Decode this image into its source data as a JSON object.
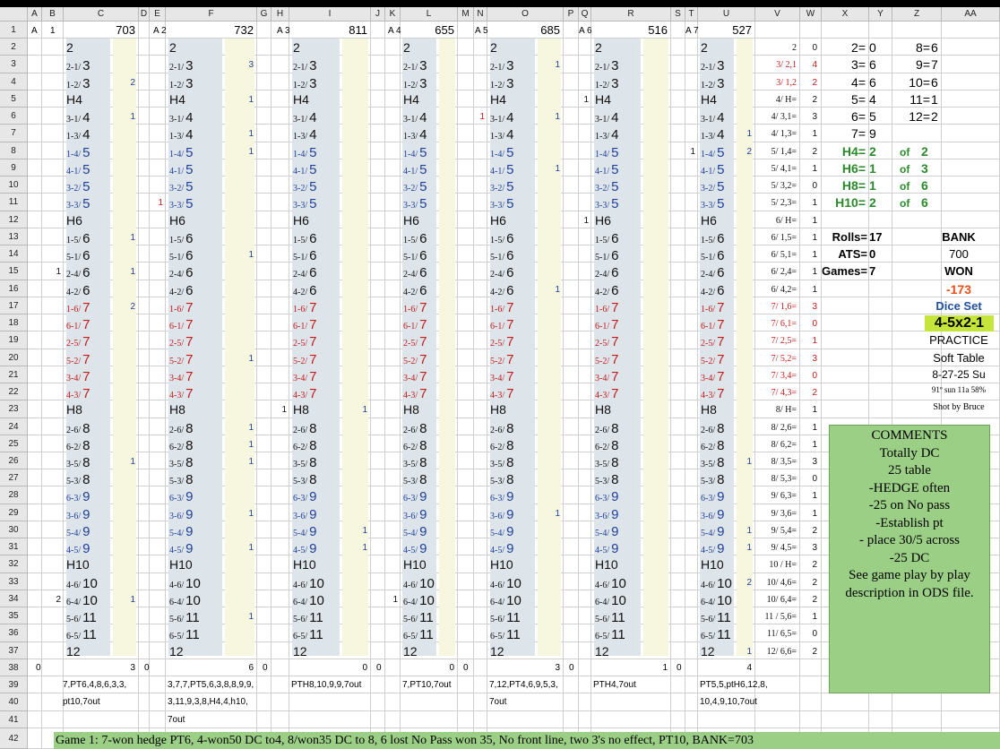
{
  "column_headers": [
    "A",
    "B",
    "C",
    "D",
    "E",
    "F",
    "G",
    "H",
    "I",
    "J",
    "K",
    "L",
    "M",
    "N",
    "O",
    "P",
    "Q",
    "R",
    "S",
    "T",
    "U",
    "V",
    "W",
    "X",
    "Y",
    "Z",
    "AA"
  ],
  "row_numbers": [
    "1",
    "2",
    "3",
    "4",
    "5",
    "6",
    "7",
    "8",
    "9",
    "10",
    "11",
    "12",
    "13",
    "14",
    "15",
    "16",
    "17",
    "18",
    "19",
    "20",
    "21",
    "22",
    "23",
    "24",
    "25",
    "26",
    "27",
    "28",
    "29",
    "30",
    "31",
    "32",
    "33",
    "34",
    "35",
    "36",
    "37",
    "38",
    "39",
    "40",
    "41",
    "42"
  ],
  "rolls": [
    {
      "label": "2",
      "type": "h",
      "color": "k"
    },
    {
      "label": "2-1/",
      "big": "3",
      "color": "k"
    },
    {
      "label": "1-2/",
      "big": "3",
      "color": "k"
    },
    {
      "label": "H4",
      "type": "h",
      "color": "k"
    },
    {
      "label": "3-1/",
      "big": "4",
      "color": "k"
    },
    {
      "label": "1-3/",
      "big": "4",
      "color": "k"
    },
    {
      "label": "1-4/",
      "big": "5",
      "color": "b"
    },
    {
      "label": "4-1/",
      "big": "5",
      "color": "b"
    },
    {
      "label": "3-2/",
      "big": "5",
      "color": "b"
    },
    {
      "label": "3-3/",
      "big": "5",
      "color": "b"
    },
    {
      "label": "H6",
      "type": "h",
      "color": "k"
    },
    {
      "label": "1-5/",
      "big": "6",
      "color": "k"
    },
    {
      "label": "5-1/",
      "big": "6",
      "color": "k"
    },
    {
      "label": "2-4/",
      "big": "6",
      "color": "k"
    },
    {
      "label": "4-2/",
      "big": "6",
      "color": "k"
    },
    {
      "label": "1-6/",
      "big": "7",
      "color": "r"
    },
    {
      "label": "6-1/",
      "big": "7",
      "color": "r"
    },
    {
      "label": "2-5/",
      "big": "7",
      "color": "r"
    },
    {
      "label": "5-2/",
      "big": "7",
      "color": "r"
    },
    {
      "label": "3-4/",
      "big": "7",
      "color": "r"
    },
    {
      "label": "4-3/",
      "big": "7",
      "color": "r"
    },
    {
      "label": "H8",
      "type": "h",
      "color": "k"
    },
    {
      "label": "2-6/",
      "big": "8",
      "color": "k"
    },
    {
      "label": "6-2/",
      "big": "8",
      "color": "k"
    },
    {
      "label": "3-5/",
      "big": "8",
      "color": "k"
    },
    {
      "label": "5-3/",
      "big": "8",
      "color": "k"
    },
    {
      "label": "6-3/",
      "big": "9",
      "color": "b"
    },
    {
      "label": "3-6/",
      "big": "9",
      "color": "b"
    },
    {
      "label": "5-4/",
      "big": "9",
      "color": "b"
    },
    {
      "label": "4-5/",
      "big": "9",
      "color": "b"
    },
    {
      "label": "H10",
      "type": "h",
      "color": "k"
    },
    {
      "label": "4-6/",
      "big": "10",
      "color": "k"
    },
    {
      "label": "6-4/",
      "big": "10",
      "color": "k"
    },
    {
      "label": "5-6/",
      "big": "11",
      "color": "k"
    },
    {
      "label": "6-5/",
      "big": "11",
      "color": "k"
    },
    {
      "label": "12",
      "type": "h",
      "color": "k"
    }
  ],
  "games": [
    {
      "a": "A",
      "b": "1",
      "total": "703",
      "row38_left": "0",
      "row38_right": "3",
      "row38_d": "0",
      "notes": [
        "7,PT6,4,8,6,3,3,",
        "pt10,7out",
        ""
      ],
      "counts": [
        {
          "row": 4,
          "v": "2"
        },
        {
          "row": 6,
          "v": "1"
        },
        {
          "row": 13,
          "v": "1"
        },
        {
          "row": 15,
          "v": "1"
        },
        {
          "row": 17,
          "v": "2"
        },
        {
          "row": 26,
          "v": "1"
        },
        {
          "row": 34,
          "v": "1"
        }
      ],
      "left_counts": [
        {
          "row": 15,
          "v": "1"
        },
        {
          "row": 34,
          "v": "2"
        }
      ]
    },
    {
      "a": "A",
      "b": "2",
      "total": "732",
      "row38_left": "",
      "row38_right": "6",
      "row38_d": "0",
      "notes": [
        "3,7,7,PT5,6,3,8,8,9,9,",
        "3,11,9,3,8,H4,4,h10,",
        "7out"
      ],
      "counts": [
        {
          "row": 3,
          "v": "3"
        },
        {
          "row": 5,
          "v": "1"
        },
        {
          "row": 7,
          "v": "1"
        },
        {
          "row": 8,
          "v": "1"
        },
        {
          "row": 14,
          "v": "1"
        },
        {
          "row": 20,
          "v": "1"
        },
        {
          "row": 24,
          "v": "1"
        },
        {
          "row": 25,
          "v": "1"
        },
        {
          "row": 26,
          "v": "1"
        },
        {
          "row": 29,
          "v": "1"
        },
        {
          "row": 31,
          "v": "1"
        },
        {
          "row": 35,
          "v": "1"
        }
      ],
      "left_counts": [
        {
          "row": 11,
          "v": "1"
        }
      ]
    },
    {
      "a": "A",
      "b": "3",
      "total": "811",
      "row38_left": "",
      "row38_right": "0",
      "row38_d": "0",
      "notes": [
        "PTH8,10,9,9,7out",
        "",
        ""
      ],
      "counts": [
        {
          "row": 23,
          "v": "1"
        },
        {
          "row": 30,
          "v": "1"
        },
        {
          "row": 31,
          "v": "1"
        }
      ],
      "left_counts": [
        {
          "row": 23,
          "v": "1"
        }
      ]
    },
    {
      "a": "A",
      "b": "4",
      "total": "655",
      "row38_left": "",
      "row38_right": "0",
      "row38_d": "0",
      "notes": [
        "7,PT10,7out",
        "",
        ""
      ],
      "counts": [],
      "left_counts": [
        {
          "row": 34,
          "v": "1"
        }
      ]
    },
    {
      "a": "A",
      "b": "5",
      "total": "685",
      "row38_left": "",
      "row38_right": "3",
      "row38_d": "0",
      "notes": [
        "7,12,PT4,6,9,5,3,",
        "7out",
        ""
      ],
      "counts": [
        {
          "row": 3,
          "v": "1"
        },
        {
          "row": 6,
          "v": "1"
        },
        {
          "row": 9,
          "v": "1"
        },
        {
          "row": 16,
          "v": "1"
        },
        {
          "row": 29,
          "v": "1"
        }
      ],
      "left_counts": [
        {
          "row": 6,
          "v": "1"
        }
      ]
    },
    {
      "a": "A",
      "b": "6",
      "total": "516",
      "row38_left": "",
      "row38_right": "1",
      "row38_d": "0",
      "notes": [
        "PTH4,7out",
        "",
        ""
      ],
      "counts": [],
      "left_counts": [
        {
          "row": 5,
          "v": "1"
        },
        {
          "row": 12,
          "v": "1"
        }
      ]
    },
    {
      "a": "A",
      "b": "7",
      "total": "527",
      "row38_left": "",
      "row38_right": "4",
      "row38_d": "",
      "notes": [
        "PT5,5,ptH6,12,8,",
        "10,4,9,10,7out",
        ""
      ],
      "counts": [
        {
          "row": 7,
          "v": "1"
        },
        {
          "row": 8,
          "v": "2"
        },
        {
          "row": 26,
          "v": "1"
        },
        {
          "row": 30,
          "v": "1"
        },
        {
          "row": 31,
          "v": "1"
        },
        {
          "row": 33,
          "v": "2"
        },
        {
          "row": 37,
          "v": "1"
        }
      ],
      "left_counts": [
        {
          "row": 8,
          "v": "1"
        }
      ]
    }
  ],
  "summary_v": [
    {
      "label": "2",
      "color": "k",
      "w": "0"
    },
    {
      "label": "3/ 2,1",
      "color": "r",
      "w": "4"
    },
    {
      "label": "3/ 1,2",
      "color": "r",
      "w": "2"
    },
    {
      "label": "4/ H=",
      "color": "k",
      "w": "2"
    },
    {
      "label": "4/ 3,1=",
      "color": "k",
      "w": "3"
    },
    {
      "label": "4/ 1,3=",
      "color": "k",
      "w": "1"
    },
    {
      "label": "5/ 1,4=",
      "color": "k",
      "w": "2"
    },
    {
      "label": "5/ 4,1=",
      "color": "k",
      "w": "1"
    },
    {
      "label": "5/ 3,2=",
      "color": "k",
      "w": "0"
    },
    {
      "label": "5/ 2,3=",
      "color": "k",
      "w": "1"
    },
    {
      "label": "6/ H=",
      "color": "k",
      "w": "1"
    },
    {
      "label": "6/ 1,5=",
      "color": "k",
      "w": "1"
    },
    {
      "label": "6/ 5,1=",
      "color": "k",
      "w": "1"
    },
    {
      "label": "6/ 2,4=",
      "color": "k",
      "w": "1"
    },
    {
      "label": "6/ 4,2=",
      "color": "k",
      "w": "1"
    },
    {
      "label": "7/ 1,6=",
      "color": "r",
      "w": "3"
    },
    {
      "label": "7/ 6,1=",
      "color": "r",
      "w": "0"
    },
    {
      "label": "7/ 2,5=",
      "color": "r",
      "w": "1"
    },
    {
      "label": "7/ 5,2=",
      "color": "r",
      "w": "3"
    },
    {
      "label": "7/ 3,4=",
      "color": "r",
      "w": "0"
    },
    {
      "label": "7/ 4,3=",
      "color": "r",
      "w": "2"
    },
    {
      "label": "8/ H=",
      "color": "k",
      "w": "1"
    },
    {
      "label": "8/ 2,6=",
      "color": "k",
      "w": "1"
    },
    {
      "label": "8/ 6,2=",
      "color": "k",
      "w": "1"
    },
    {
      "label": "8/ 3,5=",
      "color": "k",
      "w": "3"
    },
    {
      "label": "8/ 5,3=",
      "color": "k",
      "w": "0"
    },
    {
      "label": "9/ 6,3=",
      "color": "k",
      "w": "1"
    },
    {
      "label": "9/ 3,6=",
      "color": "k",
      "w": "1"
    },
    {
      "label": "9/ 5,4=",
      "color": "k",
      "w": "2"
    },
    {
      "label": "9/ 4,5=",
      "color": "k",
      "w": "3"
    },
    {
      "label": "10 / H=",
      "color": "k",
      "w": "2"
    },
    {
      "label": "10/ 4,6=",
      "color": "k",
      "w": "2"
    },
    {
      "label": "10/ 6,4=",
      "color": "k",
      "w": "2"
    },
    {
      "label": "11 / 5,6=",
      "color": "k",
      "w": "1"
    },
    {
      "label": "11/ 6,5=",
      "color": "k",
      "w": "0"
    },
    {
      "label": "12/ 6,6=",
      "color": "k",
      "w": "2"
    }
  ],
  "totals_xz": [
    {
      "x": "2=",
      "y": "0",
      "z": "8=",
      "aa": "6"
    },
    {
      "x": "3=",
      "y": "6",
      "z": "9=",
      "aa": "7"
    },
    {
      "x": "4=",
      "y": "6",
      "z": "10=",
      "aa": "6"
    },
    {
      "x": "5=",
      "y": "4",
      "z": "11=",
      "aa": "1"
    },
    {
      "x": "6=",
      "y": "5",
      "z": "12=",
      "aa": "2"
    },
    {
      "x": "7=",
      "y": "9",
      "z": "",
      "aa": ""
    }
  ],
  "hardways": [
    {
      "label": "H4=",
      "v": "2",
      "of": "of",
      "n": "2"
    },
    {
      "label": "H6=",
      "v": "1",
      "of": "of",
      "n": "3"
    },
    {
      "label": "H8=",
      "v": "1",
      "of": "of",
      "n": "6"
    },
    {
      "label": "H10=",
      "v": "2",
      "of": "of",
      "n": "6"
    }
  ],
  "stats": {
    "rolls_label": "Rolls=",
    "rolls": "17",
    "ats_label": "ATS=",
    "ats": "0",
    "games_label": "Games=",
    "games": "7",
    "bank_label": "BANK",
    "bank": "700",
    "won_label": "WON",
    "won": "-173",
    "diceset_label": "Dice Set",
    "diceset": "4-5x2-1",
    "practice": "PRACTICE",
    "table": "Soft Table",
    "date": "8-27-25 Su",
    "weather": "91º sun 11a 58%",
    "shooter": "Shot by Bruce"
  },
  "comments": [
    "COMMENTS",
    "Totally DC",
    "25 table",
    "-HEDGE often",
    "-25 on No pass",
    "-Establish pt",
    "- place 30/5 across",
    "-25 DC",
    "See game play by play",
    "description in ODS file."
  ],
  "game1_text": "Game 1: 7-won hedge PT6, 4-won50 DC to4, 8/won35 DC to 8, 6 lost No Pass won 35, No front line, two 3's no effect, PT10, BANK=703"
}
